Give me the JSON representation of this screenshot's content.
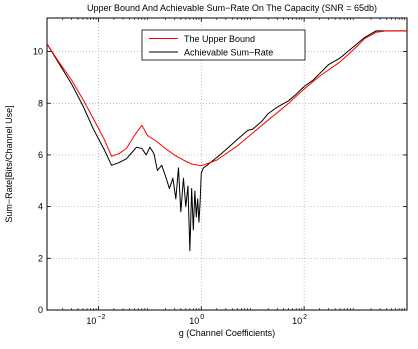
{
  "chart_data": {
    "type": "line",
    "title": "Upper Bound And Achievable Sum−Rate On The Capacity (SNR = 65db)",
    "xlabel": "g (Channel Coefficients)",
    "ylabel": "Sum−Rate[Bits/Channel Use]",
    "xscale": "log",
    "xlim": [
      0.001,
      10000
    ],
    "ylim": [
      0,
      11.3
    ],
    "grid": true,
    "legend_position": "top-center",
    "x_ticks": [
      {
        "value": 0.01,
        "base": "10",
        "exp": "−2"
      },
      {
        "value": 1,
        "base": "10",
        "exp": "0"
      },
      {
        "value": 100,
        "base": "10",
        "exp": "2"
      }
    ],
    "y_ticks": [
      {
        "value": 0,
        "label": "0"
      },
      {
        "value": 2,
        "label": "2"
      },
      {
        "value": 4,
        "label": "4"
      },
      {
        "value": 6,
        "label": "6"
      },
      {
        "value": 8,
        "label": "8"
      },
      {
        "value": 10,
        "label": "10"
      }
    ],
    "series": [
      {
        "name": "The Upper Bound",
        "color": "#ff0000",
        "x": [
          0.001,
          0.0017,
          0.003,
          0.005,
          0.008,
          0.013,
          0.018,
          0.025,
          0.035,
          0.05,
          0.07,
          0.09,
          0.13,
          0.2,
          0.3,
          0.45,
          0.65,
          1.0,
          2,
          5,
          10,
          20,
          50,
          100,
          200,
          500,
          1000,
          1500,
          2500,
          4000,
          10000
        ],
        "y": [
          10.3,
          9.6,
          8.9,
          8.15,
          7.4,
          6.6,
          5.95,
          6.05,
          6.25,
          6.75,
          7.15,
          6.75,
          6.55,
          6.25,
          6.0,
          5.8,
          5.65,
          5.58,
          5.8,
          6.35,
          6.85,
          7.35,
          8.0,
          8.55,
          9.05,
          9.6,
          10.15,
          10.5,
          10.75,
          10.8,
          10.8
        ]
      },
      {
        "name": "Achievable Sum−Rate",
        "color": "#000000",
        "x": [
          0.001,
          0.0017,
          0.003,
          0.005,
          0.008,
          0.013,
          0.018,
          0.025,
          0.035,
          0.045,
          0.055,
          0.07,
          0.085,
          0.1,
          0.12,
          0.14,
          0.17,
          0.2,
          0.24,
          0.28,
          0.32,
          0.36,
          0.4,
          0.45,
          0.5,
          0.55,
          0.6,
          0.65,
          0.7,
          0.75,
          0.8,
          0.85,
          0.9,
          0.95,
          1.0,
          1.1,
          1.3,
          1.6,
          2,
          3,
          5,
          8,
          10,
          15,
          20,
          30,
          50,
          70,
          100,
          150,
          200,
          300,
          500,
          700,
          1000,
          1500,
          2500,
          4000,
          10000
        ],
        "y": [
          10.3,
          9.55,
          8.75,
          7.9,
          7.0,
          6.2,
          5.6,
          5.7,
          5.85,
          6.1,
          6.3,
          6.25,
          6.0,
          6.3,
          6.05,
          5.4,
          5.6,
          5.2,
          4.7,
          5.1,
          4.3,
          5.5,
          3.8,
          5.1,
          4.0,
          4.8,
          2.3,
          4.7,
          3.1,
          4.6,
          3.6,
          4.3,
          3.4,
          4.2,
          5.3,
          5.5,
          5.6,
          5.75,
          5.9,
          6.2,
          6.6,
          6.95,
          7.0,
          7.3,
          7.6,
          7.85,
          8.1,
          8.35,
          8.65,
          8.9,
          9.15,
          9.5,
          9.75,
          10.0,
          10.25,
          10.55,
          10.8,
          10.8,
          10.8
        ]
      }
    ]
  }
}
